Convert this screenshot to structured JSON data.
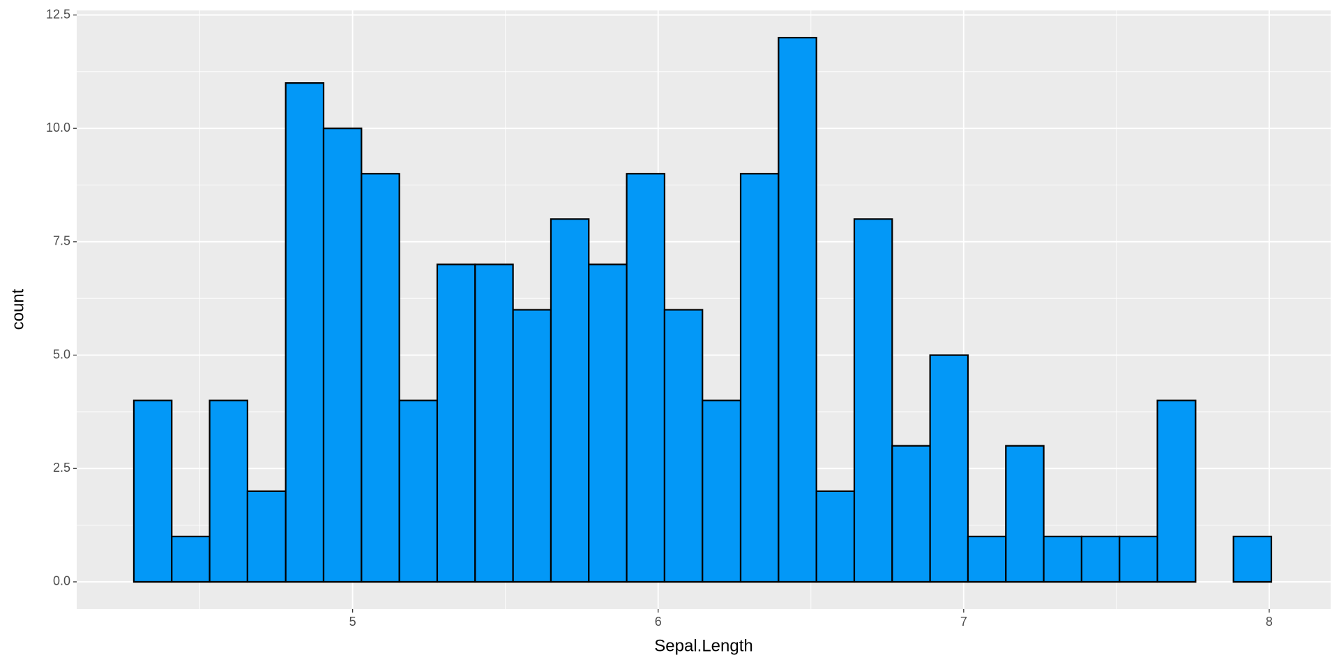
{
  "chart_data": {
    "type": "histogram",
    "x_label": "Sepal.Length",
    "y_label": "count",
    "bins": [
      4.284,
      4.408,
      4.532,
      4.656,
      4.781,
      4.905,
      5.029,
      5.153,
      5.277,
      5.401,
      5.525,
      5.649,
      5.773,
      5.897,
      6.021,
      6.145,
      6.27,
      6.394,
      6.518,
      6.642,
      6.766,
      6.89,
      7.014,
      7.138,
      7.262,
      7.386,
      7.51,
      7.634,
      7.759,
      7.883,
      8.007
    ],
    "values": [
      4,
      1,
      4,
      2,
      11,
      10,
      9,
      4,
      7,
      7,
      6,
      8,
      7,
      9,
      6,
      4,
      9,
      12,
      2,
      8,
      3,
      5,
      1,
      3,
      1,
      1,
      1,
      4,
      0,
      1
    ],
    "color": "#0398f7",
    "edge_color": "#000000",
    "xlim": [
      4.097,
      8.201
    ],
    "xticks": [
      5,
      6,
      7,
      8
    ],
    "ylim": [
      -0.6,
      12.6
    ],
    "yticks": [
      {
        "value": 0,
        "label": "0.0"
      },
      {
        "value": 2.5,
        "label": "2.5"
      },
      {
        "value": 5,
        "label": "5.0"
      },
      {
        "value": 7.5,
        "label": "7.5"
      },
      {
        "value": 10,
        "label": "10.0"
      },
      {
        "value": 12.5,
        "label": "12.5"
      }
    ],
    "grid": true
  }
}
